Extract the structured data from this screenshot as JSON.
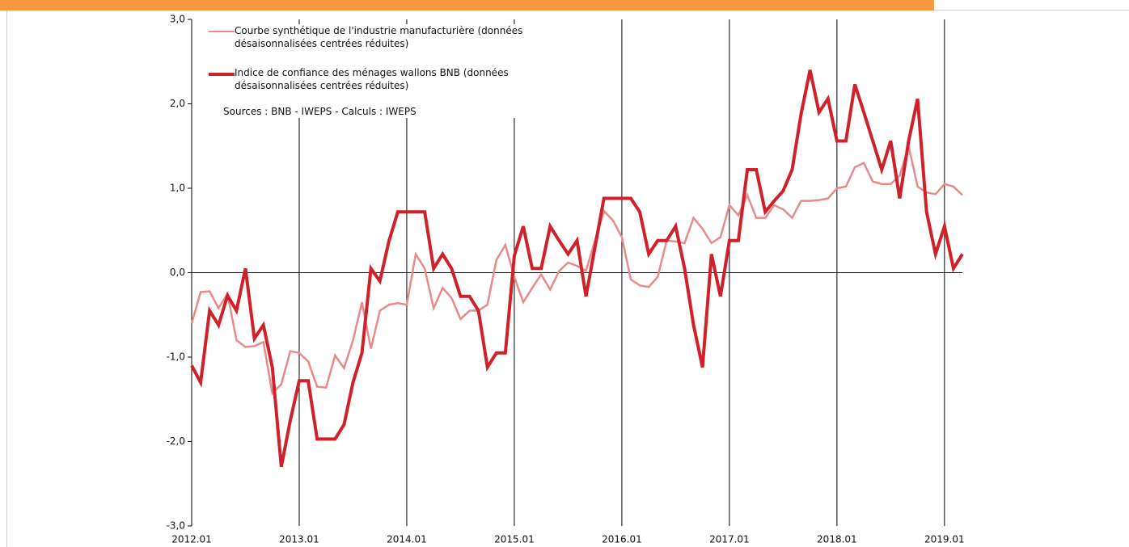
{
  "chart_data": {
    "type": "line",
    "categories": [
      "2012.01",
      null,
      null,
      null,
      null,
      null,
      null,
      null,
      null,
      null,
      null,
      null,
      "2013.01",
      null,
      null,
      null,
      null,
      null,
      null,
      null,
      null,
      null,
      null,
      null,
      "2014.01",
      null,
      null,
      null,
      null,
      null,
      null,
      null,
      null,
      null,
      null,
      null,
      "2015.01",
      null,
      null,
      null,
      null,
      null,
      null,
      null,
      null,
      null,
      null,
      null,
      "2016.01",
      null,
      null,
      null,
      null,
      null,
      null,
      null,
      null,
      null,
      null,
      null,
      "2017.01",
      null,
      null,
      null,
      null,
      null,
      null,
      null,
      null,
      null,
      null,
      null,
      "2018.01",
      null,
      null,
      null,
      null,
      null,
      null,
      null,
      null,
      null,
      null,
      null,
      "2019.01",
      null,
      null
    ],
    "series": [
      {
        "name": "Courbe synthétique de l'industrie manufacturière (données désaisonnalisées centrées réduites)",
        "color": "#e88a8a",
        "width": 2.5,
        "values": [
          -0.6,
          -0.23,
          -0.22,
          -0.42,
          -0.25,
          -0.8,
          -0.88,
          -0.87,
          -0.82,
          -1.43,
          -1.32,
          -0.93,
          -0.95,
          -1.05,
          -1.35,
          -1.36,
          -0.98,
          -1.13,
          -0.8,
          -0.35,
          -0.9,
          -0.45,
          -0.38,
          -0.36,
          -0.38,
          0.22,
          0.05,
          -0.42,
          -0.18,
          -0.3,
          -0.55,
          -0.45,
          -0.45,
          -0.38,
          0.15,
          0.33,
          -0.05,
          -0.35,
          -0.18,
          -0.02,
          -0.2,
          0.02,
          0.12,
          0.08,
          0.02,
          0.38,
          0.73,
          0.62,
          0.42,
          -0.08,
          -0.15,
          -0.17,
          -0.05,
          0.38,
          0.37,
          0.35,
          0.65,
          0.52,
          0.35,
          0.42,
          0.8,
          0.68,
          0.92,
          0.65,
          0.65,
          0.8,
          0.75,
          0.65,
          0.85,
          0.85,
          0.86,
          0.88,
          1.0,
          1.02,
          1.25,
          1.3,
          1.08,
          1.05,
          1.05,
          1.15,
          1.5,
          1.02,
          0.95,
          0.93,
          1.05,
          1.02,
          0.92
        ]
      },
      {
        "name": "Indice de confiance des ménages wallons BNB (données désaisonnalisées centrées réduites)",
        "color": "#d0202a",
        "width": 4,
        "values": [
          -1.1,
          -1.3,
          -0.45,
          -0.62,
          -0.27,
          -0.45,
          0.05,
          -0.78,
          -0.62,
          -1.12,
          -2.3,
          -1.75,
          -1.28,
          -1.28,
          -1.97,
          -1.97,
          -1.97,
          -1.8,
          -1.3,
          -0.95,
          0.05,
          -0.1,
          0.37,
          0.72,
          0.72,
          0.72,
          0.72,
          0.05,
          0.22,
          0.05,
          -0.28,
          -0.28,
          -0.45,
          -1.12,
          -0.95,
          -0.95,
          0.2,
          0.55,
          0.05,
          0.05,
          0.55,
          0.38,
          0.22,
          0.38,
          -0.28,
          0.3,
          0.88,
          0.88,
          0.88,
          0.88,
          0.72,
          0.22,
          0.38,
          0.38,
          0.55,
          0.05,
          -0.62,
          -1.12,
          0.22,
          -0.28,
          0.38,
          0.38,
          1.22,
          1.22,
          0.72,
          0.85,
          0.97,
          1.22,
          1.88,
          2.4,
          1.9,
          2.06,
          1.56,
          1.56,
          2.23,
          1.9,
          1.56,
          1.22,
          1.56,
          0.88,
          1.56,
          2.06,
          0.72,
          0.22,
          0.55,
          0.05,
          0.22
        ]
      }
    ],
    "annotation": "Sources : BNB - IWEPS - Calculs : IWEPS",
    "ylim": [
      -3,
      3
    ],
    "yticks": [
      {
        "value": -3,
        "label": "-3,0"
      },
      {
        "value": -2,
        "label": "-2,0"
      },
      {
        "value": -1,
        "label": "-1,0"
      },
      {
        "value": 0,
        "label": "0,0"
      },
      {
        "value": 1,
        "label": "1,0"
      },
      {
        "value": 2,
        "label": "2,0"
      },
      {
        "value": 3,
        "label": "3,0"
      }
    ],
    "grid": true
  }
}
